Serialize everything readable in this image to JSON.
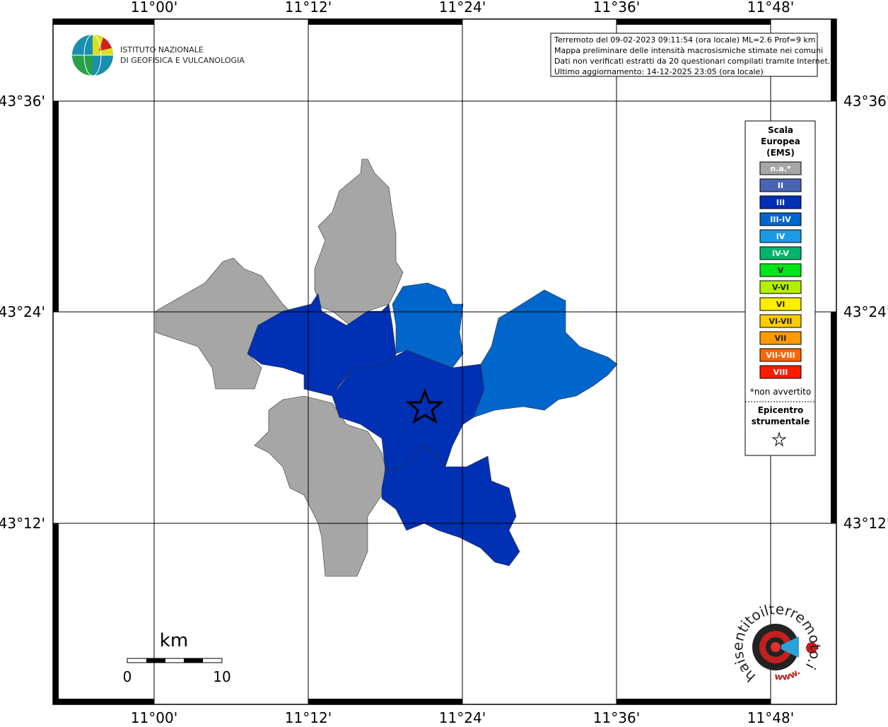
{
  "logo": {
    "lines": [
      "ISTITUTO NAZIONALE",
      "DI GEOFISICA E VULCANOLOGIA"
    ]
  },
  "info_box": {
    "lines": [
      "Terremoto del 09-02-2023 09:11:54 (ora locale) ML=2.6 Prof=9 km",
      "Mappa preliminare delle intensità macrosismiche stimate nei comuni",
      "Dati non verificati estratti da 20 questionari compilati tramite Internet.",
      "Ultimo aggiornamento: 14-12-2025 23:05 (ora locale)"
    ]
  },
  "axes": {
    "lon_labels": [
      "11°00'",
      "11°12'",
      "11°24'",
      "11°36'",
      "11°48'"
    ],
    "lat_labels": [
      "43°36'",
      "43°24'",
      "43°12'"
    ]
  },
  "legend": {
    "title": [
      "Scala",
      "Europea",
      "(EMS)"
    ],
    "classes": [
      {
        "label": "n.a.*",
        "color": "#a6a6a6"
      },
      {
        "label": "II",
        "color": "#4a64b4"
      },
      {
        "label": "III",
        "color": "#0030b4"
      },
      {
        "label": "III-IV",
        "color": "#0066cc"
      },
      {
        "label": "IV",
        "color": "#1a9be6"
      },
      {
        "label": "IV-V",
        "color": "#00b36b"
      },
      {
        "label": "V",
        "color": "#00e61a"
      },
      {
        "label": "V-VI",
        "color": "#b3f000"
      },
      {
        "label": "VI",
        "color": "#ffee00"
      },
      {
        "label": "VI-VII",
        "color": "#ffcc00"
      },
      {
        "label": "VII",
        "color": "#ff9a00"
      },
      {
        "label": "VII-VIII",
        "color": "#ff6600"
      },
      {
        "label": "VIII",
        "color": "#ff1a00"
      }
    ],
    "note": "*non avvertito",
    "epicenter": [
      "Epicentro",
      "strumentale"
    ]
  },
  "scale_bar": {
    "unit": "km",
    "ticks": [
      0,
      10
    ]
  },
  "site_logo": {
    "text": "haisentitoilterremoto.it",
    "prefix": "www."
  }
}
